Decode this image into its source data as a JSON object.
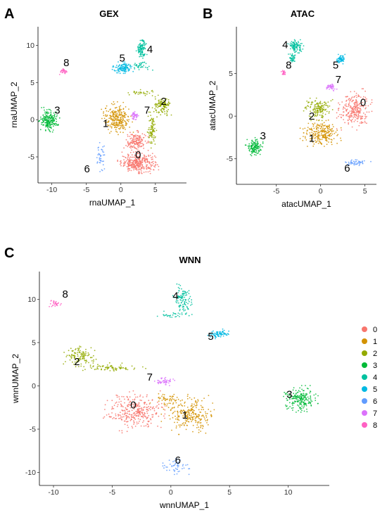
{
  "figure": {
    "panel_letters": [
      "A",
      "B",
      "C"
    ]
  },
  "legend": {
    "entries": [
      {
        "label": "0",
        "color": "#F8766D"
      },
      {
        "label": "1",
        "color": "#D39200"
      },
      {
        "label": "2",
        "color": "#93AA00"
      },
      {
        "label": "3",
        "color": "#00BA38"
      },
      {
        "label": "4",
        "color": "#00C19F"
      },
      {
        "label": "5",
        "color": "#00B9E3"
      },
      {
        "label": "6",
        "color": "#619CFF"
      },
      {
        "label": "7",
        "color": "#DB72FB"
      },
      {
        "label": "8",
        "color": "#FF61C3"
      }
    ]
  },
  "chart_data": [
    {
      "type": "scatter",
      "title": "GEX",
      "xlabel": "rnaUMAP_1",
      "ylabel": "rnaUMAP_2",
      "xlim": [
        -12,
        9.5
      ],
      "ylim": [
        -8.5,
        12.5
      ],
      "xticks": [
        -10,
        -5,
        0,
        5
      ],
      "yticks": [
        -5,
        0,
        5,
        10
      ],
      "grid": false,
      "clusters": [
        {
          "label": "0",
          "color": "#F8766D",
          "blobs": [
            {
              "cx": 2.5,
              "cy": -5.8,
              "rx": 2.7,
              "ry": 1.3,
              "n": 320
            },
            {
              "cx": 2.2,
              "cy": -3.0,
              "rx": 1.6,
              "ry": 1.4,
              "n": 160
            }
          ]
        },
        {
          "label": "1",
          "color": "#D39200",
          "blobs": [
            {
              "cx": -0.5,
              "cy": 0.2,
              "rx": 2.1,
              "ry": 2.0,
              "n": 260
            }
          ]
        },
        {
          "label": "2",
          "color": "#93AA00",
          "blobs": [
            {
              "cx": 6.0,
              "cy": 1.8,
              "rx": 1.3,
              "ry": 1.3,
              "n": 120
            },
            {
              "cx": 4.5,
              "cy": -1.5,
              "rx": 0.6,
              "ry": 2.3,
              "n": 90
            },
            {
              "cx": 3.2,
              "cy": 3.6,
              "rx": 2.0,
              "ry": 0.4,
              "n": 30
            }
          ]
        },
        {
          "label": "3",
          "color": "#00BA38",
          "blobs": [
            {
              "cx": -10.4,
              "cy": 0.0,
              "rx": 1.4,
              "ry": 1.5,
              "n": 200
            }
          ]
        },
        {
          "label": "4",
          "color": "#00C19F",
          "blobs": [
            {
              "cx": 3.0,
              "cy": 9.5,
              "rx": 0.7,
              "ry": 1.2,
              "n": 110
            },
            {
              "cx": 2.8,
              "cy": 7.2,
              "rx": 1.8,
              "ry": 0.6,
              "n": 40
            }
          ]
        },
        {
          "label": "5",
          "color": "#00B9E3",
          "blobs": [
            {
              "cx": 0.3,
              "cy": 7.0,
              "rx": 1.4,
              "ry": 0.7,
              "n": 110
            }
          ]
        },
        {
          "label": "6",
          "color": "#619CFF",
          "blobs": [
            {
              "cx": -2.9,
              "cy": -5.0,
              "rx": 0.7,
              "ry": 1.8,
              "n": 40
            }
          ]
        },
        {
          "label": "7",
          "color": "#DB72FB",
          "blobs": [
            {
              "cx": 2.0,
              "cy": 0.5,
              "rx": 0.5,
              "ry": 0.6,
              "n": 40
            }
          ]
        },
        {
          "label": "8",
          "color": "#FF61C3",
          "blobs": [
            {
              "cx": -8.2,
              "cy": 6.5,
              "rx": 0.6,
              "ry": 0.4,
              "n": 30
            }
          ]
        }
      ],
      "annotations": [
        {
          "text": "0",
          "x": 2.5,
          "y": -5.2
        },
        {
          "text": "1",
          "x": -2.2,
          "y": -1.0
        },
        {
          "text": "2",
          "x": 6.2,
          "y": 2.0
        },
        {
          "text": "3",
          "x": -9.2,
          "y": 0.8
        },
        {
          "text": "4",
          "x": 4.2,
          "y": 9.0
        },
        {
          "text": "5",
          "x": 0.2,
          "y": 7.8
        },
        {
          "text": "6",
          "x": -4.9,
          "y": -7.1
        },
        {
          "text": "7",
          "x": 3.8,
          "y": 0.8
        },
        {
          "text": "8",
          "x": -7.9,
          "y": 7.2
        }
      ]
    },
    {
      "type": "scatter",
      "title": "ATAC",
      "xlabel": "atacUMAP_1",
      "ylabel": "atacUMAP_2",
      "xlim": [
        -9.5,
        6.3
      ],
      "ylim": [
        -8,
        10.5
      ],
      "xticks": [
        -5,
        0,
        5
      ],
      "yticks": [
        -5,
        0,
        5
      ],
      "grid": false,
      "clusters": [
        {
          "label": "0",
          "color": "#F8766D",
          "blobs": [
            {
              "cx": 3.8,
              "cy": 0.8,
              "rx": 1.8,
              "ry": 2.2,
              "n": 260
            }
          ]
        },
        {
          "label": "1",
          "color": "#D39200",
          "blobs": [
            {
              "cx": 0.0,
              "cy": -2.0,
              "rx": 2.1,
              "ry": 1.4,
              "n": 240
            }
          ]
        },
        {
          "label": "2",
          "color": "#93AA00",
          "blobs": [
            {
              "cx": -0.3,
              "cy": 0.8,
              "rx": 1.5,
              "ry": 1.2,
              "n": 150
            }
          ]
        },
        {
          "label": "3",
          "color": "#00BA38",
          "blobs": [
            {
              "cx": -7.5,
              "cy": -3.6,
              "rx": 0.9,
              "ry": 1.0,
              "n": 130
            }
          ]
        },
        {
          "label": "4",
          "color": "#00C19F",
          "blobs": [
            {
              "cx": -2.8,
              "cy": 8.2,
              "rx": 0.8,
              "ry": 0.7,
              "n": 100
            },
            {
              "cx": -3.2,
              "cy": 6.8,
              "rx": 0.4,
              "ry": 0.7,
              "n": 40
            }
          ]
        },
        {
          "label": "5",
          "color": "#00B9E3",
          "blobs": [
            {
              "cx": 2.3,
              "cy": 6.7,
              "rx": 0.5,
              "ry": 0.5,
              "n": 60
            }
          ]
        },
        {
          "label": "6",
          "color": "#619CFF",
          "blobs": [
            {
              "cx": 4.0,
              "cy": -5.5,
              "rx": 1.6,
              "ry": 0.4,
              "n": 50
            }
          ]
        },
        {
          "label": "7",
          "color": "#DB72FB",
          "blobs": [
            {
              "cx": 1.2,
              "cy": 3.4,
              "rx": 0.6,
              "ry": 0.4,
              "n": 40
            }
          ]
        },
        {
          "label": "8",
          "color": "#FF61C3",
          "blobs": [
            {
              "cx": -4.2,
              "cy": 5.1,
              "rx": 0.3,
              "ry": 0.3,
              "n": 25
            }
          ]
        }
      ],
      "annotations": [
        {
          "text": "0",
          "x": 4.8,
          "y": 1.2
        },
        {
          "text": "1",
          "x": -1.0,
          "y": -3.0
        },
        {
          "text": "2",
          "x": -1.0,
          "y": -0.4
        },
        {
          "text": "3",
          "x": -6.5,
          "y": -2.7
        },
        {
          "text": "4",
          "x": -4.0,
          "y": 8.0
        },
        {
          "text": "5",
          "x": 1.7,
          "y": 5.6
        },
        {
          "text": "6",
          "x": 3.0,
          "y": -6.5
        },
        {
          "text": "7",
          "x": 2.0,
          "y": 3.9
        },
        {
          "text": "8",
          "x": -3.6,
          "y": 5.6
        }
      ]
    },
    {
      "type": "scatter",
      "title": "WNN",
      "xlabel": "wnnUMAP_1",
      "ylabel": "wnnUMAP_2",
      "xlim": [
        -11.2,
        13.5
      ],
      "ylim": [
        -11.5,
        13.2
      ],
      "xticks": [
        -10,
        -5,
        0,
        5,
        10
      ],
      "yticks": [
        -10,
        -5,
        0,
        5,
        10
      ],
      "grid": false,
      "legend_position": "right",
      "clusters": [
        {
          "label": "0",
          "color": "#F8766D",
          "blobs": [
            {
              "cx": -3.0,
              "cy": -3.0,
              "rx": 2.5,
              "ry": 2.2,
              "n": 320
            }
          ]
        },
        {
          "label": "1",
          "color": "#D39200",
          "blobs": [
            {
              "cx": 1.5,
              "cy": -3.3,
              "rx": 2.1,
              "ry": 2.1,
              "n": 260
            },
            {
              "cx": -0.5,
              "cy": -1.5,
              "rx": 1.2,
              "ry": 0.6,
              "n": 40
            }
          ]
        },
        {
          "label": "2",
          "color": "#93AA00",
          "blobs": [
            {
              "cx": -7.8,
              "cy": 3.4,
              "rx": 1.3,
              "ry": 1.1,
              "n": 120
            },
            {
              "cx": -5.0,
              "cy": 2.1,
              "rx": 2.6,
              "ry": 0.5,
              "n": 80
            }
          ]
        },
        {
          "label": "3",
          "color": "#00BA38",
          "blobs": [
            {
              "cx": 11.0,
              "cy": -1.5,
              "rx": 1.4,
              "ry": 1.4,
              "n": 200
            }
          ]
        },
        {
          "label": "4",
          "color": "#00C19F",
          "blobs": [
            {
              "cx": 1.0,
              "cy": 10.0,
              "rx": 0.8,
              "ry": 1.6,
              "n": 110
            },
            {
              "cx": 0.2,
              "cy": 8.2,
              "rx": 1.4,
              "ry": 0.4,
              "n": 30
            }
          ]
        },
        {
          "label": "5",
          "color": "#00B9E3",
          "blobs": [
            {
              "cx": 4.1,
              "cy": 6.0,
              "rx": 0.9,
              "ry": 0.5,
              "n": 70
            }
          ]
        },
        {
          "label": "6",
          "color": "#619CFF",
          "blobs": [
            {
              "cx": 0.5,
              "cy": -9.3,
              "rx": 1.3,
              "ry": 1.0,
              "n": 50
            }
          ]
        },
        {
          "label": "7",
          "color": "#DB72FB",
          "blobs": [
            {
              "cx": -0.5,
              "cy": 0.5,
              "rx": 0.8,
              "ry": 0.5,
              "n": 50
            }
          ]
        },
        {
          "label": "8",
          "color": "#FF61C3",
          "blobs": [
            {
              "cx": -9.9,
              "cy": 9.5,
              "rx": 0.5,
              "ry": 0.5,
              "n": 30
            }
          ]
        }
      ],
      "annotations": [
        {
          "text": "0",
          "x": -3.2,
          "y": -2.6
        },
        {
          "text": "1",
          "x": 1.2,
          "y": -3.8
        },
        {
          "text": "2",
          "x": -8.0,
          "y": 2.4
        },
        {
          "text": "3",
          "x": 10.1,
          "y": -1.4
        },
        {
          "text": "4",
          "x": 0.4,
          "y": 10.0
        },
        {
          "text": "5",
          "x": 3.4,
          "y": 5.3
        },
        {
          "text": "6",
          "x": 0.6,
          "y": -9.0
        },
        {
          "text": "7",
          "x": -1.8,
          "y": 0.6
        },
        {
          "text": "8",
          "x": -9.0,
          "y": 10.2
        }
      ]
    }
  ]
}
